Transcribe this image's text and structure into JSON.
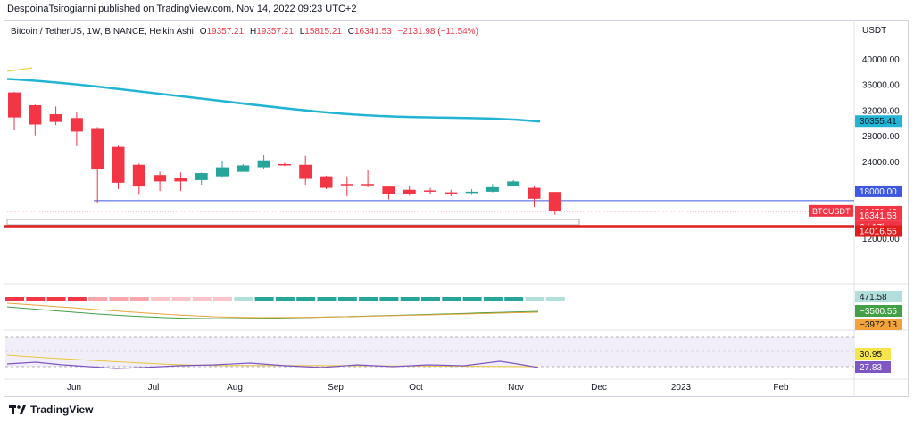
{
  "header": {
    "published_by": "DespoinaTsirogianni published on TradingView.com, Nov 14, 2022 09:23 UTC+2"
  },
  "legend": {
    "symbol": "Bitcoin / TetherUS, 1W, BINANCE, Heikin Ashi",
    "open_label": "O",
    "open": "19357.21",
    "high_label": "H",
    "high": "19357.21",
    "low_label": "L",
    "low": "15815.21",
    "close_label": "C",
    "close": "16341.53",
    "change": "−2131.98 (−11.54%)"
  },
  "footer": {
    "brand": "TradingView",
    "logo_icon": "tradingview-logo-icon"
  },
  "colors": {
    "up": "#26a69a",
    "down": "#f23645",
    "ma": "#22b4d4",
    "hline_blue": "#3f58e0",
    "support_red": "#e01e1e",
    "rsi": "#7e57c2",
    "rsi_yellow": "#e8c53a"
  },
  "chart_data": [
    {
      "type": "candlestick",
      "title": "",
      "y_axis_unit": "USDT",
      "y_ticks": [
        "40000.00",
        "36000.00",
        "32000.00",
        "28000.00",
        "24000.00",
        "12000.00"
      ],
      "ylim": [
        10000,
        45000
      ],
      "x_tick_labels": [
        "Jun",
        "Jul",
        "Aug",
        "Sep",
        "Oct",
        "Nov",
        "Dec",
        "2023",
        "Feb"
      ],
      "candles": [
        {
          "o": 34900,
          "h": 35000,
          "l": 29000,
          "c": 31000
        },
        {
          "o": 32900,
          "h": 33000,
          "l": 28200,
          "c": 29900
        },
        {
          "o": 31500,
          "h": 32700,
          "l": 29800,
          "c": 30300
        },
        {
          "o": 30900,
          "h": 31800,
          "l": 26500,
          "c": 28800
        },
        {
          "o": 29200,
          "h": 29500,
          "l": 17600,
          "c": 23000
        },
        {
          "o": 26400,
          "h": 26600,
          "l": 19800,
          "c": 20800
        },
        {
          "o": 23600,
          "h": 23800,
          "l": 18900,
          "c": 20200
        },
        {
          "o": 22000,
          "h": 22500,
          "l": 19500,
          "c": 21000
        },
        {
          "o": 21500,
          "h": 22400,
          "l": 19500,
          "c": 21000
        },
        {
          "o": 21200,
          "h": 22400,
          "l": 20500,
          "c": 22300
        },
        {
          "o": 21800,
          "h": 24200,
          "l": 21700,
          "c": 23200
        },
        {
          "o": 22500,
          "h": 23700,
          "l": 22500,
          "c": 23500
        },
        {
          "o": 23200,
          "h": 25100,
          "l": 23000,
          "c": 24300
        },
        {
          "o": 23700,
          "h": 23900,
          "l": 23400,
          "c": 23500
        },
        {
          "o": 23600,
          "h": 25000,
          "l": 20500,
          "c": 21400
        },
        {
          "o": 21800,
          "h": 21900,
          "l": 19800,
          "c": 20000
        },
        {
          "o": 20600,
          "h": 21800,
          "l": 18700,
          "c": 20500
        },
        {
          "o": 20600,
          "h": 22800,
          "l": 20100,
          "c": 20500
        },
        {
          "o": 20200,
          "h": 20200,
          "l": 18200,
          "c": 19000
        },
        {
          "o": 19700,
          "h": 20300,
          "l": 18800,
          "c": 19100
        },
        {
          "o": 19600,
          "h": 20000,
          "l": 19000,
          "c": 19400
        },
        {
          "o": 19300,
          "h": 19700,
          "l": 18700,
          "c": 19000
        },
        {
          "o": 19300,
          "h": 19800,
          "l": 18900,
          "c": 19400
        },
        {
          "o": 19400,
          "h": 20600,
          "l": 19300,
          "c": 20100
        },
        {
          "o": 20300,
          "h": 21200,
          "l": 20200,
          "c": 21000
        },
        {
          "o": 20000,
          "h": 20300,
          "l": 17000,
          "c": 18300
        },
        {
          "o": 19357.21,
          "h": 19357.21,
          "l": 15815.21,
          "c": 16341.53
        }
      ],
      "moving_average": {
        "from": 37000,
        "to": 30355.41
      },
      "price_labels": [
        {
          "value": "30355.41",
          "kind": "ma"
        },
        {
          "value": "18000.00",
          "kind": "level"
        },
        {
          "value": "16470.45",
          "kind": "down"
        },
        {
          "value": "16341.53",
          "kind": "down"
        },
        {
          "value": "6d 17h",
          "kind": "down"
        },
        {
          "value": "14016.55",
          "kind": "support"
        }
      ],
      "symbol_tag": "BTCUSDT",
      "levels": {
        "blue_line": 18000,
        "red_support": 14016.55
      }
    },
    {
      "type": "histogram",
      "title": "",
      "price_labels": [
        {
          "value": "471.58",
          "kind": "hist"
        },
        {
          "value": "−3500.55",
          "kind": "macd"
        },
        {
          "value": "−3972.13",
          "kind": "signal"
        }
      ]
    },
    {
      "type": "line",
      "title": "",
      "price_labels": [
        {
          "value": "30.95",
          "kind": "yellow"
        },
        {
          "value": "27.83",
          "kind": "rsi"
        }
      ]
    }
  ]
}
